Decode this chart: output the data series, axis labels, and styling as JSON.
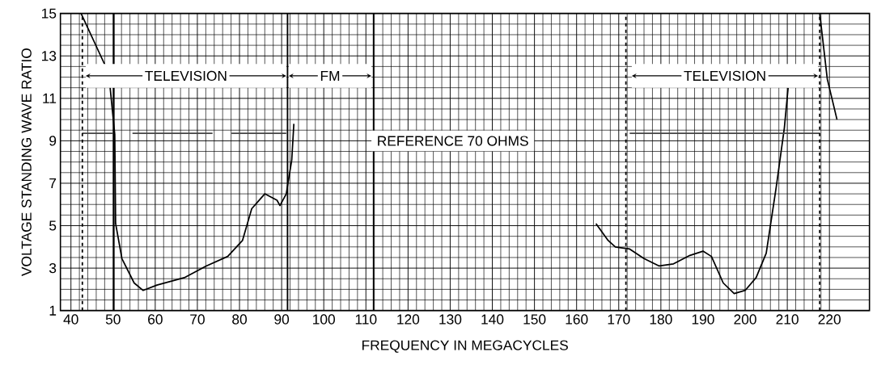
{
  "chart_data": {
    "type": "line",
    "xlabel": "FREQUENCY IN MEGACYCLES",
    "ylabel": "VOLTAGE STANDING WAVE RATIO",
    "xlim": [
      37.5,
      229.5
    ],
    "ylim": [
      1,
      15
    ],
    "xticks": [
      40,
      50,
      60,
      70,
      80,
      90,
      100,
      110,
      120,
      130,
      140,
      150,
      160,
      170,
      180,
      190,
      200,
      210,
      220
    ],
    "yticks": [
      1,
      3,
      5,
      7,
      9,
      11,
      13,
      15
    ],
    "grid": true,
    "line_style": "solid",
    "series": [
      {
        "color": "#000000",
        "x": [
          42.4,
          48.0,
          49.3,
          50.4,
          50.6,
          52.1,
          55.0,
          57.1,
          60.4,
          66.9,
          72.1,
          77.2,
          80.7,
          82.9,
          86.0,
          88.9,
          89.6,
          91.1,
          92.4,
          92.9
        ],
        "values": [
          15,
          12.6,
          11.5,
          9.3,
          5.1,
          3.45,
          2.3,
          1.95,
          2.2,
          2.55,
          3.1,
          3.55,
          4.3,
          5.8,
          6.5,
          6.2,
          5.95,
          6.5,
          8.1,
          9.8
        ]
      },
      {
        "color": "#000000",
        "x": [
          164.6,
          167.5,
          169.2,
          172.6,
          176.0,
          179.6,
          183.0,
          186.9,
          190.0,
          192.0,
          194.8,
          197.4,
          200.0,
          202.6,
          205.0,
          207.4,
          209.3,
          210.2,
          214.0,
          217.7,
          219.5,
          221.8
        ],
        "values": [
          5.1,
          4.3,
          4.0,
          3.9,
          3.45,
          3.1,
          3.2,
          3.6,
          3.8,
          3.55,
          2.3,
          1.8,
          1.95,
          2.55,
          3.7,
          6.85,
          9.6,
          11.5,
          null,
          15,
          11.9,
          10
        ]
      },
      {
        "color": "#444444",
        "x": [
          42.7,
          50.2,
          52.0,
          54.6,
          73.6,
          76.0,
          78.1,
          91.1,
          130.0,
          172.6,
          217.7
        ],
        "values": [
          9.35,
          9.35,
          null,
          9.35,
          9.35,
          null,
          9.35,
          9.35,
          null,
          9.35,
          9.35
        ]
      }
    ],
    "ref_lines": [
      {
        "axis": "x",
        "value": 42.7,
        "line_style": "dashed"
      },
      {
        "axis": "x",
        "value": 50.2,
        "line_style": "solid"
      },
      {
        "axis": "x",
        "value": 91.4,
        "line_style": "solid"
      },
      {
        "axis": "x",
        "value": 111.8,
        "line_style": "solid"
      },
      {
        "axis": "x",
        "value": 171.7,
        "line_style": "dashed"
      },
      {
        "axis": "x",
        "value": 217.7,
        "line_style": "dashed"
      }
    ],
    "bands": [
      {
        "axis": "x",
        "from": 43.5,
        "to": 91.1,
        "label": "TELEVISION"
      },
      {
        "axis": "x",
        "from": 91.7,
        "to": 111.3,
        "label": "FM"
      },
      {
        "axis": "x",
        "from": 173.1,
        "to": 217.3,
        "label": "TELEVISION"
      }
    ],
    "annotations": [
      "REFERENCE 70 OHMS"
    ]
  }
}
